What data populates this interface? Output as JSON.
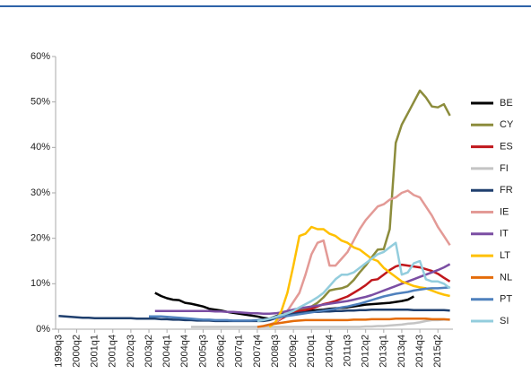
{
  "chart_data": {
    "type": "line",
    "categories": [
      "1999q3",
      null,
      null,
      "2000q2",
      null,
      null,
      "2001q1",
      null,
      null,
      "2001q4",
      null,
      null,
      "2002q3",
      null,
      null,
      "2003q2",
      null,
      null,
      "2004q1",
      null,
      null,
      "2004q4",
      null,
      null,
      "2005q3",
      null,
      null,
      "2006q2",
      null,
      null,
      "2007q1",
      null,
      null,
      "2007q4",
      null,
      null,
      "2008q3",
      null,
      null,
      "2009q2",
      null,
      null,
      "2010q1",
      null,
      null,
      "2010q4",
      null,
      null,
      "2011q3",
      null,
      null,
      "2012q2",
      null,
      null,
      "2013q1",
      null,
      null,
      "2013q4",
      null,
      null,
      "2014q3",
      null,
      null,
      "2015q2",
      null,
      null
    ],
    "ylim": [
      0,
      60
    ],
    "yticks": [
      {
        "value": 0,
        "label": "0%"
      },
      {
        "value": 10,
        "label": "10%"
      },
      {
        "value": 20,
        "label": "20%"
      },
      {
        "value": 30,
        "label": "30%"
      },
      {
        "value": 40,
        "label": "40%"
      },
      {
        "value": 50,
        "label": "50%"
      },
      {
        "value": 60,
        "label": "60%"
      }
    ],
    "series": [
      {
        "name": "BE",
        "color": "#000000",
        "values": [
          null,
          null,
          null,
          null,
          null,
          null,
          null,
          null,
          null,
          null,
          null,
          null,
          null,
          null,
          null,
          null,
          8,
          7.3,
          6.8,
          6.5,
          6.4,
          5.8,
          5.6,
          5.3,
          5,
          4.5,
          4.3,
          4.1,
          3.8,
          3.6,
          3.4,
          3.2,
          3,
          2.8,
          2.5,
          2.3,
          2.8,
          3.3,
          3.6,
          3.8,
          3.9,
          4,
          4.1,
          4.2,
          4.3,
          4.5,
          4.6,
          4.7,
          4.8,
          5,
          5.2,
          5.4,
          5.5,
          5.6,
          5.7,
          5.8,
          6,
          6.2,
          6.5,
          7.2,
          null,
          null,
          null,
          null,
          null,
          null
        ]
      },
      {
        "name": "CY",
        "color": "#8c8c3c",
        "values": [
          null,
          null,
          null,
          null,
          null,
          null,
          null,
          null,
          null,
          null,
          null,
          null,
          null,
          null,
          null,
          null,
          null,
          null,
          null,
          null,
          null,
          null,
          null,
          null,
          null,
          null,
          null,
          null,
          null,
          null,
          null,
          null,
          null,
          null,
          null,
          null,
          null,
          null,
          3.5,
          3.8,
          4.2,
          4.6,
          5,
          5.8,
          7,
          8.5,
          8.8,
          9,
          9.5,
          10.8,
          12.5,
          14,
          15.8,
          17.5,
          17.6,
          22,
          41,
          45,
          47.5,
          50,
          52.5,
          51,
          49,
          48.8,
          49.5,
          47
        ]
      },
      {
        "name": "ES",
        "color": "#c0171c",
        "values": [
          null,
          null,
          null,
          null,
          null,
          null,
          null,
          null,
          null,
          null,
          null,
          null,
          null,
          null,
          null,
          null,
          null,
          null,
          null,
          null,
          null,
          null,
          null,
          null,
          null,
          null,
          null,
          null,
          null,
          null,
          null,
          null,
          null,
          null,
          null,
          0.8,
          1.5,
          2.3,
          3,
          3.6,
          4,
          4.2,
          4.5,
          5,
          5.5,
          5.8,
          6.2,
          6.7,
          7.2,
          8,
          8.8,
          9.7,
          10.8,
          11,
          12,
          13,
          13.8,
          14.2,
          14,
          13.8,
          13.6,
          13.2,
          12.8,
          12.2,
          11.3,
          10.5
        ]
      },
      {
        "name": "FI",
        "color": "#c4c4c4",
        "values": [
          null,
          null,
          null,
          null,
          null,
          null,
          null,
          null,
          null,
          null,
          null,
          null,
          null,
          null,
          null,
          null,
          null,
          null,
          null,
          null,
          null,
          null,
          0.5,
          0.5,
          0.5,
          0.5,
          0.5,
          0.5,
          0.5,
          0.5,
          0.5,
          0.5,
          0.5,
          0.5,
          0.5,
          0.5,
          0.5,
          0.5,
          0.5,
          0.5,
          0.5,
          0.5,
          0.5,
          0.5,
          0.5,
          0.5,
          0.5,
          0.5,
          0.5,
          0.5,
          0.5,
          0.6,
          0.6,
          0.7,
          0.7,
          0.8,
          0.9,
          1,
          1.2,
          1.3,
          1.5,
          1.8,
          2,
          2,
          2.1,
          2.1
        ]
      },
      {
        "name": "FR",
        "color": "#1f3f6e",
        "values": [
          2.9,
          2.8,
          2.7,
          2.6,
          2.5,
          2.5,
          2.4,
          2.4,
          2.4,
          2.4,
          2.4,
          2.4,
          2.4,
          2.3,
          2.3,
          2.3,
          2.3,
          2.2,
          2.2,
          2.1,
          2.1,
          2,
          2,
          1.9,
          1.9,
          1.9,
          1.8,
          1.8,
          1.8,
          1.8,
          1.8,
          1.8,
          1.8,
          1.8,
          1.8,
          2,
          2.4,
          2.8,
          3.1,
          3.4,
          3.6,
          3.7,
          3.8,
          3.8,
          3.9,
          3.9,
          4,
          4,
          4.1,
          4.1,
          4.2,
          4.2,
          4.3,
          4.3,
          4.3,
          4.3,
          4.3,
          4.3,
          4.3,
          4.2,
          4.2,
          4.2,
          4.2,
          4.2,
          4.2,
          4.1
        ]
      },
      {
        "name": "IE",
        "color": "#e39a96",
        "values": [
          null,
          null,
          null,
          null,
          null,
          null,
          null,
          null,
          null,
          null,
          null,
          null,
          null,
          null,
          null,
          null,
          null,
          null,
          null,
          null,
          null,
          null,
          null,
          null,
          null,
          null,
          null,
          null,
          null,
          null,
          null,
          null,
          null,
          null,
          null,
          1,
          1.5,
          2.5,
          4,
          6,
          8,
          12,
          16.5,
          19,
          19.5,
          14,
          14,
          15.5,
          17,
          19.5,
          22,
          24,
          25.5,
          27,
          27.5,
          28.5,
          29,
          30,
          30.5,
          29.5,
          29,
          27,
          25,
          22.5,
          20.5,
          18.5
        ]
      },
      {
        "name": "IT",
        "color": "#7b4ea3",
        "values": [
          null,
          null,
          null,
          null,
          null,
          null,
          null,
          null,
          null,
          null,
          null,
          null,
          null,
          null,
          null,
          null,
          4,
          4,
          4,
          4,
          4,
          4,
          4,
          4,
          4,
          4,
          3.9,
          3.9,
          3.8,
          3.8,
          3.7,
          3.6,
          3.5,
          3.5,
          3.4,
          3.4,
          3.5,
          3.7,
          4,
          4.3,
          4.6,
          4.8,
          5,
          5.2,
          5.4,
          5.6,
          5.8,
          6,
          6.2,
          6.5,
          6.8,
          7.1,
          7.5,
          8,
          8.5,
          9,
          9.5,
          10,
          10.5,
          11,
          11.5,
          12,
          12.5,
          13,
          13.6,
          14.3
        ]
      },
      {
        "name": "LT",
        "color": "#ffc000",
        "values": [
          null,
          null,
          null,
          null,
          null,
          null,
          null,
          null,
          null,
          null,
          null,
          null,
          null,
          null,
          null,
          null,
          null,
          null,
          null,
          null,
          null,
          null,
          null,
          null,
          null,
          null,
          null,
          null,
          null,
          null,
          null,
          null,
          null,
          null,
          null,
          0.5,
          1.5,
          4,
          8,
          14,
          20.5,
          21,
          22.5,
          22,
          22,
          21,
          20.5,
          19.5,
          19,
          18,
          17.5,
          16.5,
          15.5,
          15,
          13.5,
          12.5,
          11.5,
          10.5,
          10,
          9.5,
          9.2,
          9,
          8.5,
          8,
          7.6,
          7.3
        ]
      },
      {
        "name": "NL",
        "color": "#e46c0a",
        "values": [
          null,
          null,
          null,
          null,
          null,
          null,
          null,
          null,
          null,
          null,
          null,
          null,
          null,
          null,
          null,
          null,
          null,
          null,
          null,
          null,
          null,
          null,
          null,
          null,
          null,
          null,
          null,
          null,
          null,
          null,
          null,
          null,
          null,
          0.5,
          0.7,
          1,
          1.2,
          1.4,
          1.6,
          1.8,
          1.9,
          2,
          2,
          2,
          2,
          2,
          2,
          2,
          2,
          2.1,
          2.1,
          2.1,
          2.2,
          2.2,
          2.2,
          2.2,
          2.3,
          2.3,
          2.3,
          2.3,
          2.3,
          2.3,
          2.2,
          2.2,
          2.2,
          2.1
        ]
      },
      {
        "name": "PT",
        "color": "#4f81bd",
        "values": [
          null,
          null,
          null,
          null,
          null,
          null,
          null,
          null,
          null,
          null,
          null,
          null,
          null,
          null,
          null,
          2.8,
          2.8,
          2.8,
          2.7,
          2.6,
          2.5,
          2.4,
          2.3,
          2.2,
          2.1,
          2.1,
          2,
          2,
          2,
          1.9,
          1.9,
          1.9,
          1.9,
          2,
          2.1,
          2.3,
          2.5,
          2.7,
          2.9,
          3.1,
          3.3,
          3.5,
          3.7,
          3.9,
          4.1,
          4.3,
          4.5,
          4.8,
          5,
          5.3,
          5.6,
          6,
          6.4,
          6.8,
          7.2,
          7.5,
          7.8,
          8,
          8.2,
          8.5,
          8.7,
          8.9,
          9,
          9,
          9.1,
          9.2
        ]
      },
      {
        "name": "SI",
        "color": "#93cddd",
        "values": [
          null,
          null,
          null,
          null,
          null,
          null,
          null,
          null,
          null,
          null,
          null,
          null,
          null,
          null,
          null,
          null,
          null,
          null,
          null,
          null,
          null,
          null,
          null,
          null,
          null,
          null,
          null,
          null,
          null,
          null,
          null,
          null,
          null,
          1.8,
          2,
          2.3,
          2.7,
          3.1,
          3.5,
          4,
          4.8,
          5.5,
          6.2,
          7,
          8,
          9.5,
          11,
          12,
          12,
          12.5,
          13.5,
          14.5,
          15.5,
          16.5,
          17,
          18,
          19,
          12,
          12.5,
          14.5,
          15,
          11,
          10.5,
          10.5,
          10,
          9
        ]
      }
    ]
  }
}
